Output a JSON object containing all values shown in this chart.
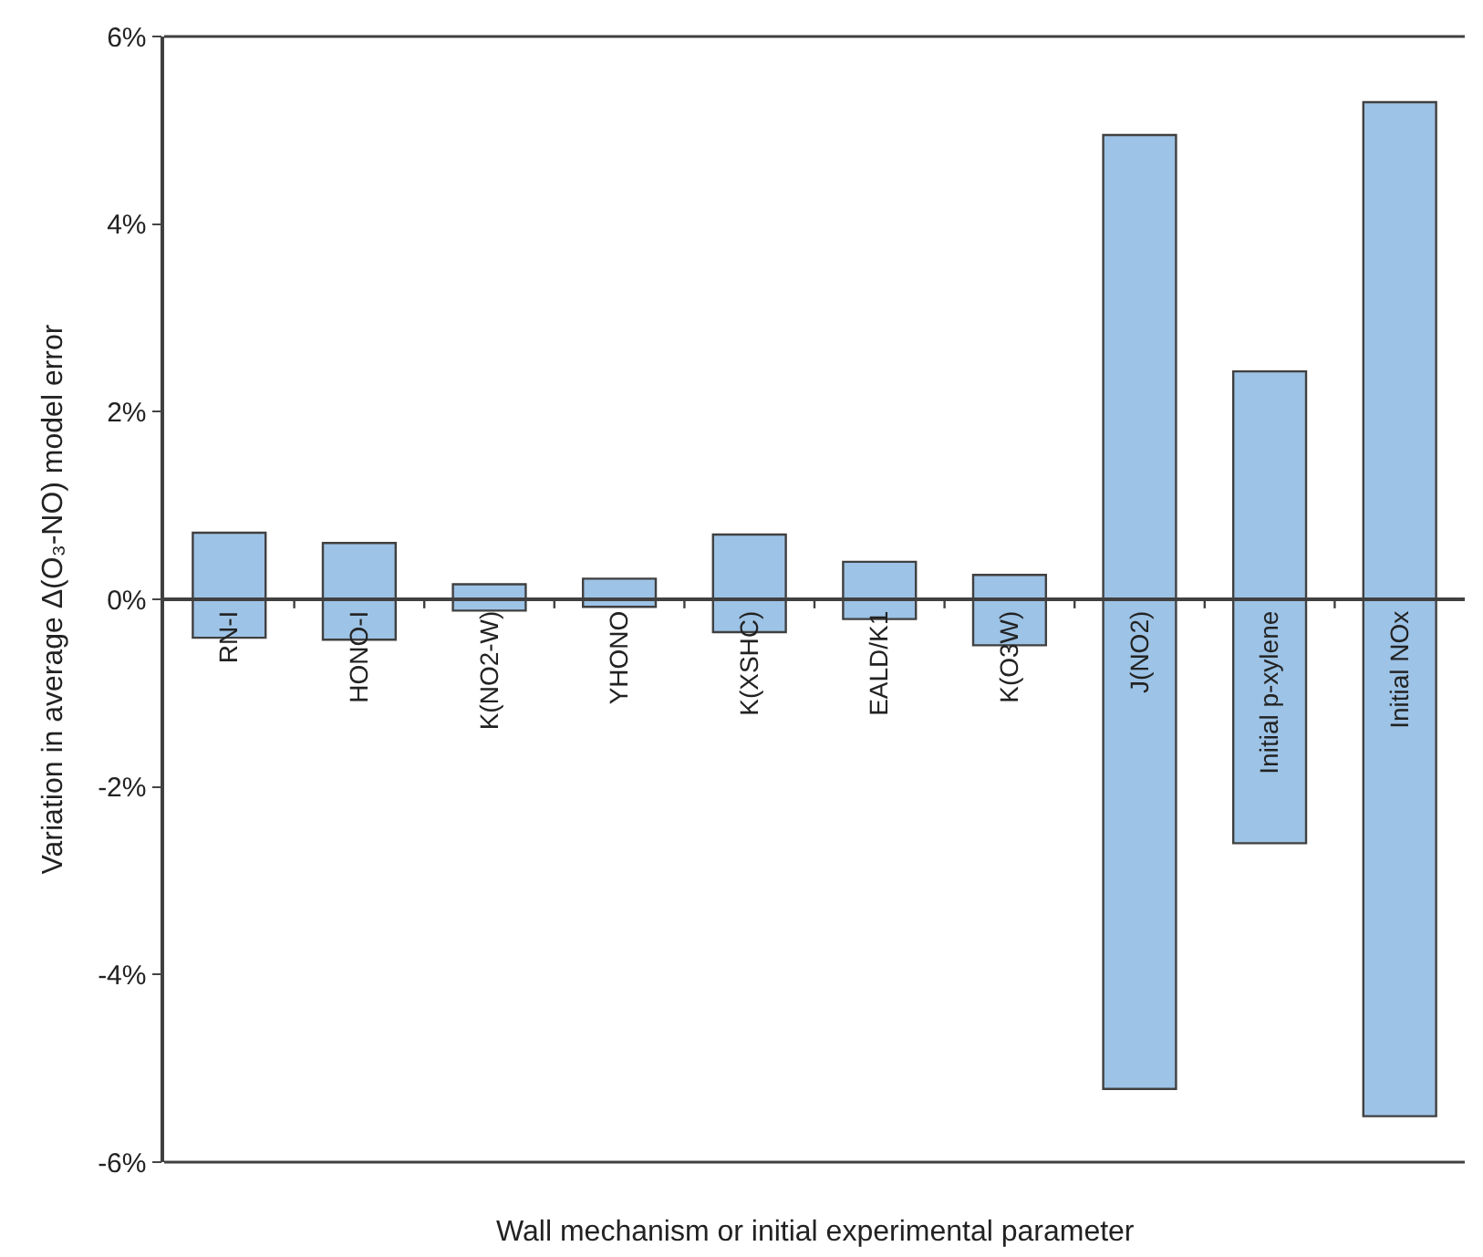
{
  "chart_data": {
    "type": "bar",
    "xlabel": "Wall mechanism or initial experimental parameter",
    "ylabel": "Variation in average Δ(O₃-NO) model error",
    "categories": [
      "RN-I",
      "HONO-I",
      "K(NO2-W)",
      "YHONO",
      "K(XSHC)",
      "EALD/K1",
      "K(O3W)",
      "J(NO2)",
      "Initial p-xylene",
      "Initial NOx"
    ],
    "base": [
      -0.41,
      -0.43,
      -0.12,
      -0.08,
      -0.35,
      -0.21,
      -0.49,
      -5.22,
      -2.6,
      -5.51
    ],
    "values": [
      1.12,
      1.03,
      0.28,
      0.3,
      1.04,
      0.61,
      0.75,
      10.17,
      5.03,
      10.81
    ],
    "color": "#9dc3e6",
    "ylim": [
      -6,
      6
    ],
    "yticks": [
      {
        "value": -6,
        "label": "-6%"
      },
      {
        "value": -4,
        "label": "-4%"
      },
      {
        "value": -2,
        "label": "-2%"
      },
      {
        "value": 0,
        "label": "0%"
      },
      {
        "value": 2,
        "label": "2%"
      },
      {
        "value": 4,
        "label": "4%"
      },
      {
        "value": 6,
        "label": "6%"
      }
    ]
  }
}
